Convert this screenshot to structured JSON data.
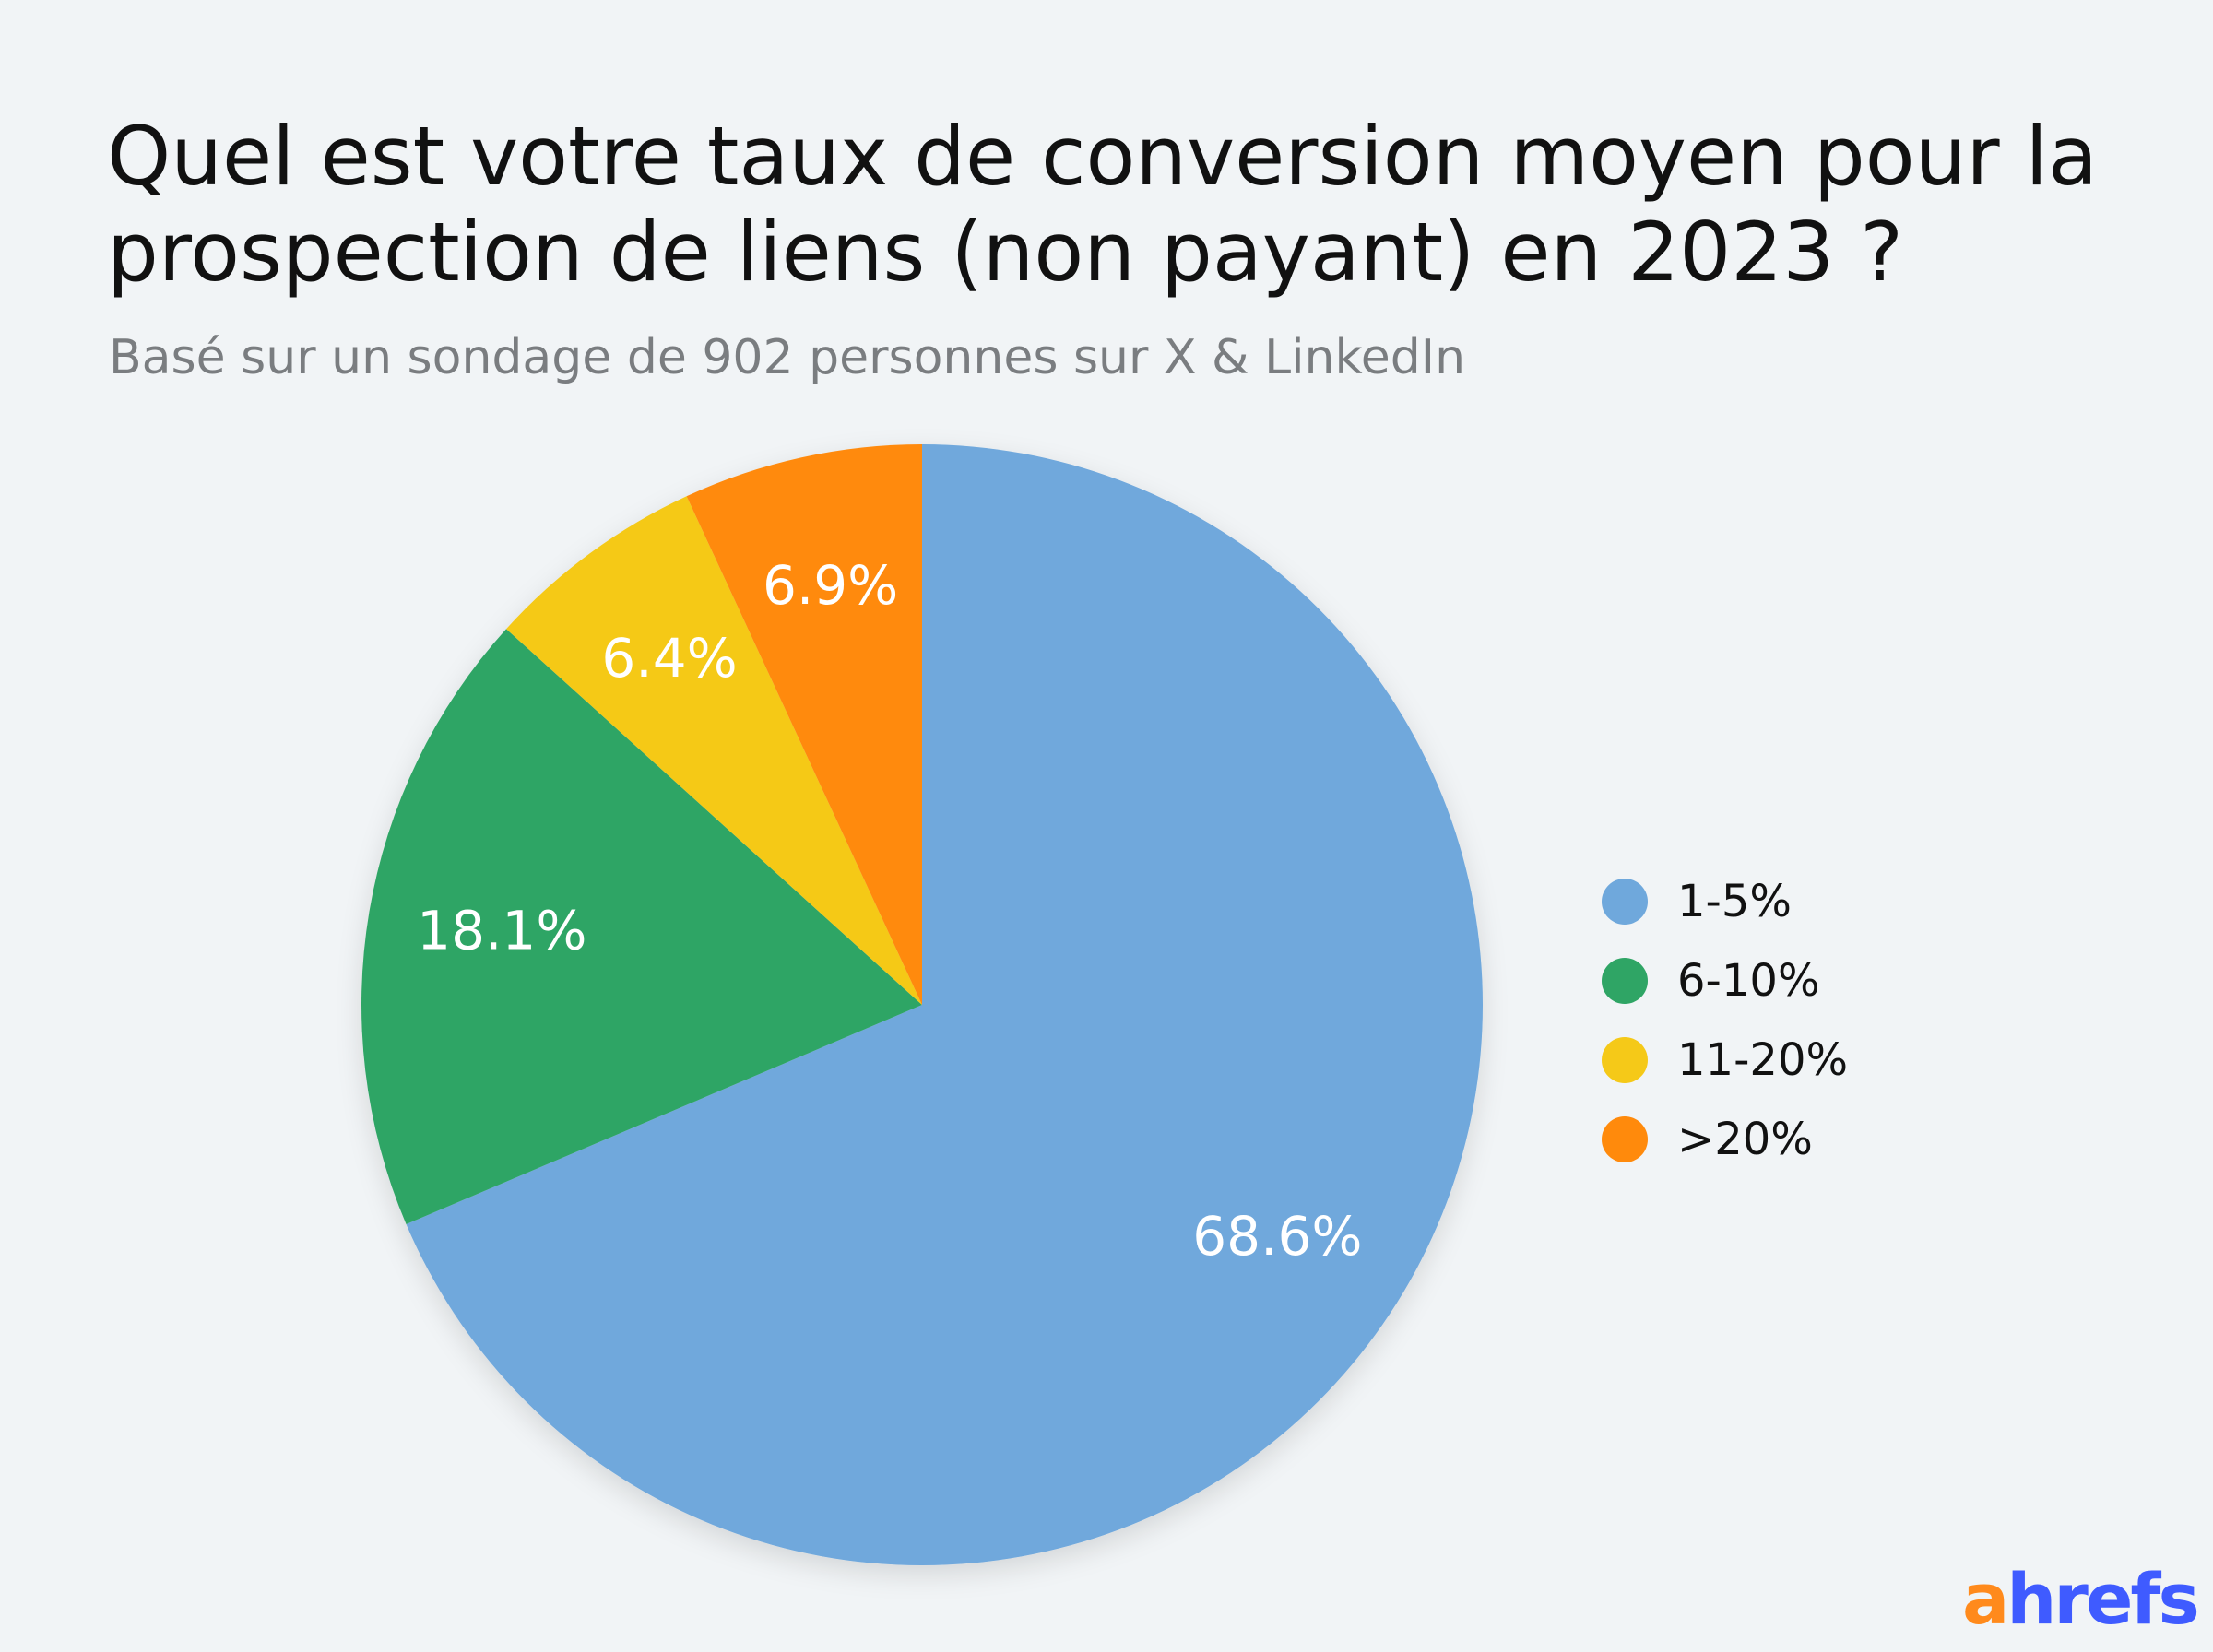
{
  "title": "Quel est votre taux de conversion moyen pour la prospection de liens (non payant) en 2023 ?",
  "subtitle": "Basé sur un sondage de 902 personnes sur X & LinkedIn",
  "logo": {
    "part1": "a",
    "part2": "hrefs"
  },
  "chart_data": {
    "type": "pie",
    "title": "Quel est votre taux de conversion moyen pour la prospection de liens (non payant) en 2023 ?",
    "subtitle": "Basé sur un sondage de 902 personnes sur X & LinkedIn",
    "categories": [
      "1-5%",
      "6-10%",
      "11-20%",
      ">20%"
    ],
    "values": [
      68.6,
      18.1,
      6.4,
      6.9
    ],
    "labels": [
      "68.6%",
      "18.1%",
      "6.4%",
      "6.9%"
    ],
    "colors": [
      "#6fa8dc",
      "#2fa565",
      "#f5c918",
      "#ff8a0c"
    ],
    "legend_position": "right",
    "start": "top-clockwise"
  }
}
